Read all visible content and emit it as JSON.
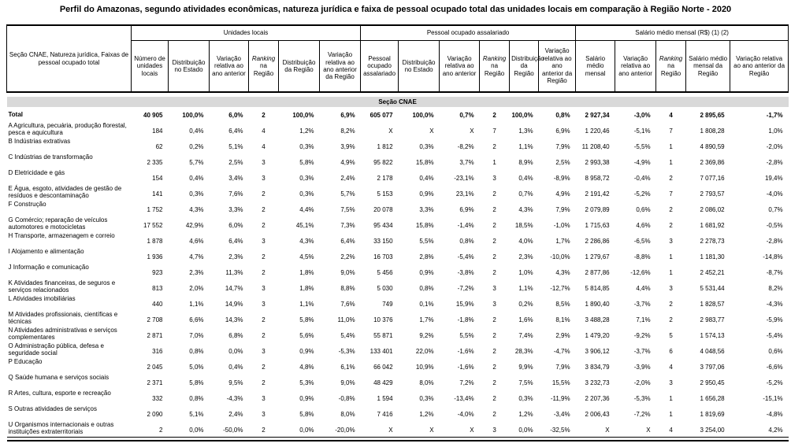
{
  "page": {
    "title": "Perfil do Amazonas, segundo atividades econômicas, natureza jurídica e faixa de pessoal ocupado total das unidades locais em comparação à Região Norte - 2020"
  },
  "table": {
    "stub_header": "Seção CNAE, Natureza jurídica, Faixas de pessoal ocupado total",
    "groups": [
      {
        "label": "Unidades locais"
      },
      {
        "label": "Pessoal ocupado assalariado"
      },
      {
        "label": "Salário médio mensal (R$) (1) (2)"
      }
    ],
    "cols": [
      {
        "label": "Número de unidades locais"
      },
      {
        "label": "Distribuição no Estado"
      },
      {
        "label": "Variação relativa ao ano anterior"
      },
      {
        "italic": "Ranking",
        "label": "na Região"
      },
      {
        "label": "Distribuição da Região"
      },
      {
        "label": "Variação relativa ao ano anterior da Região"
      },
      {
        "label": "Pessoal ocupado assalariado"
      },
      {
        "label": "Distribuição no Estado"
      },
      {
        "label": "Variação relativa ao ano anterior"
      },
      {
        "italic": "Ranking",
        "label": "na Região"
      },
      {
        "label": "Distribuição da Região"
      },
      {
        "label": "Variação relativa ao ano anterior da Região"
      },
      {
        "label": "Salário médio mensal"
      },
      {
        "label": "Variação relativa ao ano anterior"
      },
      {
        "italic": "Ranking",
        "label": "na Região"
      },
      {
        "label": "Salário médio mensal da Região"
      },
      {
        "label": "Variação relativa ao ano anterior da Região"
      }
    ],
    "section_band": "Seção CNAE",
    "rows": [
      {
        "label": "Total",
        "bold": true,
        "values": [
          "40 905",
          "100,0%",
          "6,0%",
          "2",
          "100,0%",
          "6,9%",
          "605 077",
          "100,0%",
          "0,7%",
          "2",
          "100,0%",
          "0,8%",
          "2 927,34",
          "-3,0%",
          "4",
          "2 895,65",
          "-1,7%"
        ]
      },
      {
        "label": "A Agricultura, pecuária, produção florestal, pesca e aquicultura",
        "values": [
          "184",
          "0,4%",
          "6,4%",
          "4",
          "1,2%",
          "8,2%",
          "X",
          "X",
          "X",
          "7",
          "1,3%",
          "6,9%",
          "1 220,46",
          "-5,1%",
          "7",
          "1 808,28",
          "1,0%"
        ]
      },
      {
        "label": "B Indústrias extrativas",
        "values": [
          "62",
          "0,2%",
          "5,1%",
          "4",
          "0,3%",
          "3,9%",
          "1 812",
          "0,3%",
          "-8,2%",
          "2",
          "1,1%",
          "7,9%",
          "11 208,40",
          "-5,5%",
          "1",
          "4 890,59",
          "-2,0%"
        ]
      },
      {
        "label": "C Indústrias de transformação",
        "values": [
          "2 335",
          "5,7%",
          "2,5%",
          "3",
          "5,8%",
          "4,9%",
          "95 822",
          "15,8%",
          "3,7%",
          "1",
          "8,9%",
          "2,5%",
          "2 993,38",
          "-4,9%",
          "1",
          "2 369,86",
          "-2,8%"
        ]
      },
      {
        "label": "D Eletricidade e gás",
        "values": [
          "154",
          "0,4%",
          "3,4%",
          "3",
          "0,3%",
          "2,4%",
          "2 178",
          "0,4%",
          "-23,1%",
          "3",
          "0,4%",
          "-8,9%",
          "8 958,72",
          "-0,4%",
          "2",
          "7 077,16",
          "19,4%"
        ]
      },
      {
        "label": "E Água, esgoto, atividades de gestão de resíduos e descontaminação",
        "values": [
          "141",
          "0,3%",
          "7,6%",
          "2",
          "0,3%",
          "5,7%",
          "5 153",
          "0,9%",
          "23,1%",
          "2",
          "0,7%",
          "4,9%",
          "2 191,42",
          "-5,2%",
          "7",
          "2 793,57",
          "-4,0%"
        ]
      },
      {
        "label": "F Construção",
        "values": [
          "1 752",
          "4,3%",
          "3,3%",
          "2",
          "4,4%",
          "7,5%",
          "20 078",
          "3,3%",
          "6,9%",
          "2",
          "4,3%",
          "7,9%",
          "2 079,89",
          "0,6%",
          "2",
          "2 086,02",
          "0,7%"
        ]
      },
      {
        "label": "G Comércio; reparação de veículos automotores e motocicletas",
        "values": [
          "17 552",
          "42,9%",
          "6,0%",
          "2",
          "45,1%",
          "7,3%",
          "95 434",
          "15,8%",
          "-1,4%",
          "2",
          "18,5%",
          "-1,0%",
          "1 715,63",
          "4,6%",
          "2",
          "1 681,92",
          "-0,5%"
        ]
      },
      {
        "label": "H Transporte, armazenagem e correio",
        "values": [
          "1 878",
          "4,6%",
          "6,4%",
          "3",
          "4,3%",
          "6,4%",
          "33 150",
          "5,5%",
          "0,8%",
          "2",
          "4,0%",
          "1,7%",
          "2 286,86",
          "-6,5%",
          "3",
          "2 278,73",
          "-2,8%"
        ]
      },
      {
        "label": "I Alojamento e alimentação",
        "values": [
          "1 936",
          "4,7%",
          "2,3%",
          "2",
          "4,5%",
          "2,2%",
          "16 703",
          "2,8%",
          "-5,4%",
          "2",
          "2,3%",
          "-10,0%",
          "1 279,67",
          "-8,8%",
          "1",
          "1 181,30",
          "-14,8%"
        ]
      },
      {
        "label": "J Informação e comunicação",
        "values": [
          "923",
          "2,3%",
          "11,3%",
          "2",
          "1,8%",
          "9,0%",
          "5 456",
          "0,9%",
          "-3,8%",
          "2",
          "1,0%",
          "4,3%",
          "2 877,86",
          "-12,6%",
          "1",
          "2 452,21",
          "-8,7%"
        ]
      },
      {
        "label": "K Atividades financeiras, de seguros e serviços relacionados",
        "values": [
          "813",
          "2,0%",
          "14,7%",
          "3",
          "1,8%",
          "8,8%",
          "5 030",
          "0,8%",
          "-7,2%",
          "3",
          "1,1%",
          "-12,7%",
          "5 814,85",
          "4,4%",
          "3",
          "5 531,44",
          "8,2%"
        ]
      },
      {
        "label": "L Atividades imobiliárias",
        "values": [
          "440",
          "1,1%",
          "14,9%",
          "3",
          "1,1%",
          "7,6%",
          "749",
          "0,1%",
          "15,9%",
          "3",
          "0,2%",
          "8,5%",
          "1 890,40",
          "-3,7%",
          "2",
          "1 828,57",
          "-4,3%"
        ]
      },
      {
        "label": "M Atividades profissionais, científicas e técnicas",
        "values": [
          "2 708",
          "6,6%",
          "14,3%",
          "2",
          "5,8%",
          "11,0%",
          "10 376",
          "1,7%",
          "-1,8%",
          "2",
          "1,6%",
          "8,1%",
          "3 488,28",
          "7,1%",
          "2",
          "2 983,77",
          "-5,9%"
        ]
      },
      {
        "label": "N Atividades administrativas e serviços complementares",
        "values": [
          "2 871",
          "7,0%",
          "6,8%",
          "2",
          "5,6%",
          "5,4%",
          "55 871",
          "9,2%",
          "5,5%",
          "2",
          "7,4%",
          "2,9%",
          "1 479,20",
          "-9,2%",
          "5",
          "1 574,13",
          "-5,4%"
        ]
      },
      {
        "label": "O Administração pública, defesa e seguridade social",
        "values": [
          "316",
          "0,8%",
          "0,0%",
          "3",
          "0,9%",
          "-5,3%",
          "133 401",
          "22,0%",
          "-1,6%",
          "2",
          "28,3%",
          "-4,7%",
          "3 906,12",
          "-3,7%",
          "6",
          "4 048,56",
          "0,6%"
        ]
      },
      {
        "label": "P Educação",
        "values": [
          "2 045",
          "5,0%",
          "0,4%",
          "2",
          "4,8%",
          "6,1%",
          "66 042",
          "10,9%",
          "-1,6%",
          "2",
          "9,9%",
          "7,9%",
          "3 834,79",
          "-3,9%",
          "4",
          "3 797,06",
          "-6,6%"
        ]
      },
      {
        "label": "Q Saúde humana e serviços sociais",
        "values": [
          "2 371",
          "5,8%",
          "9,5%",
          "2",
          "5,3%",
          "9,0%",
          "48 429",
          "8,0%",
          "7,2%",
          "2",
          "7,5%",
          "15,5%",
          "3 232,73",
          "-2,0%",
          "3",
          "2 950,45",
          "-5,2%"
        ]
      },
      {
        "label": "R Artes, cultura, esporte e recreação",
        "values": [
          "332",
          "0,8%",
          "-4,3%",
          "3",
          "0,9%",
          "-0,8%",
          "1 594",
          "0,3%",
          "-13,4%",
          "2",
          "0,3%",
          "-11,9%",
          "2 207,36",
          "-5,3%",
          "1",
          "1 656,28",
          "-15,1%"
        ]
      },
      {
        "label": "S Outras atividades de serviços",
        "values": [
          "2 090",
          "5,1%",
          "2,4%",
          "3",
          "5,8%",
          "8,0%",
          "7 416",
          "1,2%",
          "-4,0%",
          "2",
          "1,2%",
          "-3,4%",
          "2 006,43",
          "-7,2%",
          "1",
          "1 819,69",
          "-4,8%"
        ]
      },
      {
        "label": "U Organismos internacionais e outras instituições extraterritoriais",
        "values": [
          "2",
          "0,0%",
          "-50,0%",
          "2",
          "0,0%",
          "-20,0%",
          "X",
          "X",
          "X",
          "3",
          "0,0%",
          "-32,5%",
          "X",
          "X",
          "4",
          "3 254,00",
          "4,2%"
        ]
      }
    ]
  }
}
